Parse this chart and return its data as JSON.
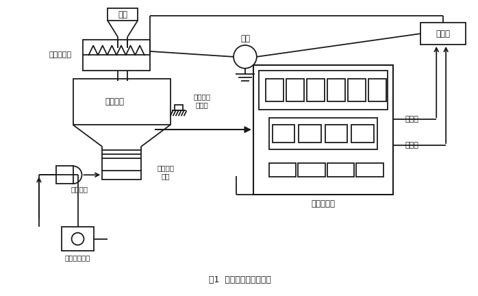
{
  "title": "图1  系统总体方案示意图",
  "bg_color": "#ffffff",
  "line_color": "#1a1a1a",
  "labels": {
    "liao_cang": "料仓",
    "luoxuan": "螺旋加料器",
    "dianji": "电机",
    "bipin": "变频器",
    "chengzhong": "称重料斗",
    "yingbian": "应变称重\n传感器",
    "xieliao": "卸料电动\n螺阀",
    "liansuo": "联锁部件",
    "anniu": "卸料操作按钮",
    "kongzhiyi": "定量控制仪",
    "kuaijia": "快加料",
    "manjia": "慢加料"
  },
  "font": "SimSun"
}
